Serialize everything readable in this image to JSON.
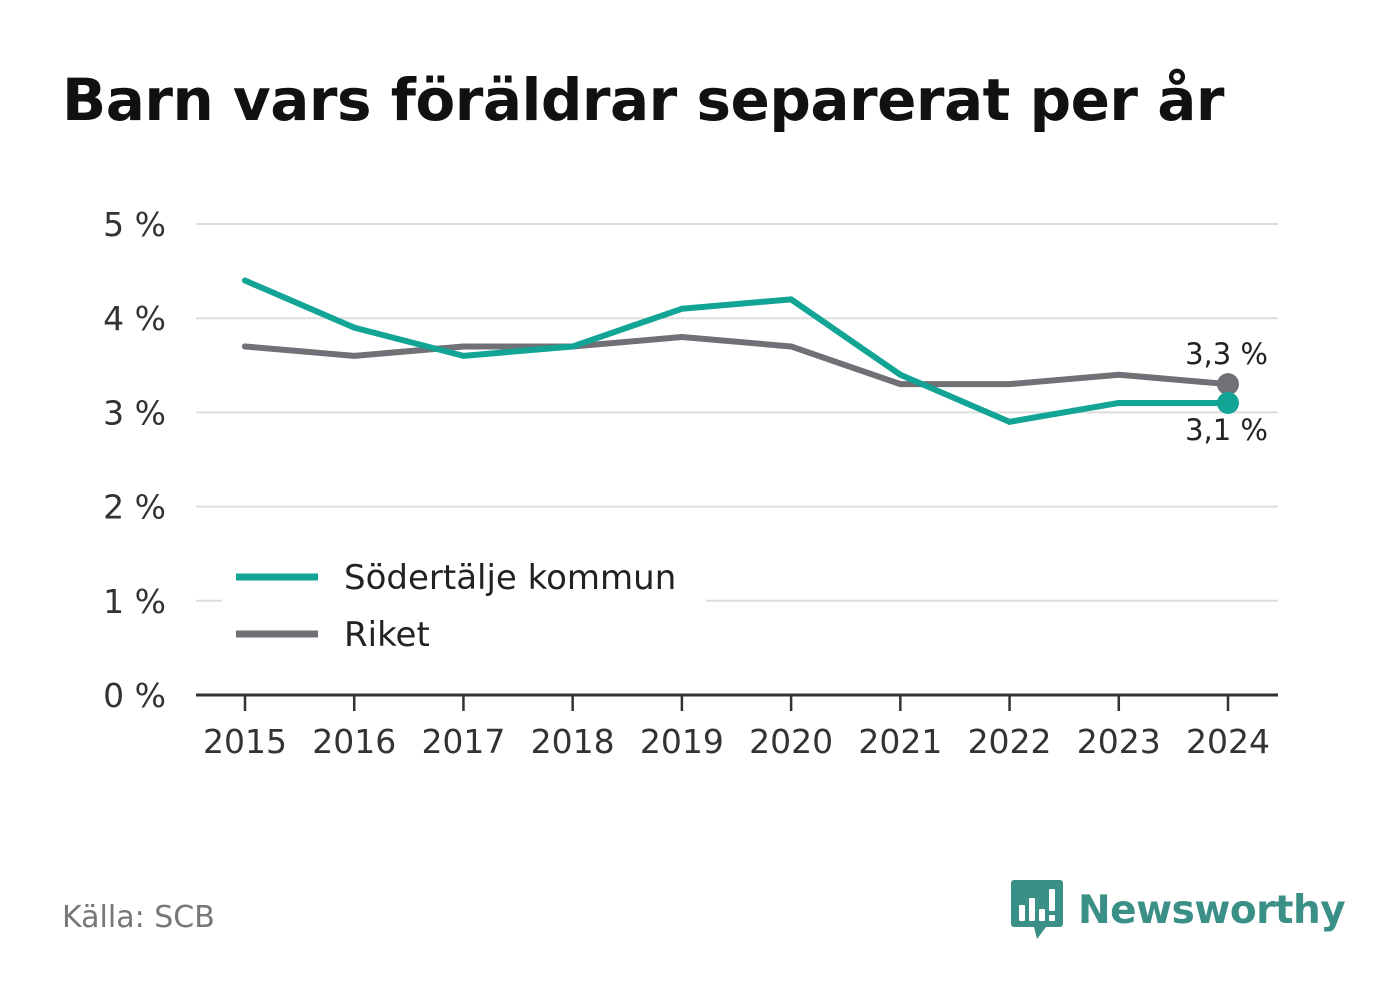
{
  "title": "Barn vars föräldrar separerat per år",
  "source": "Källa: SCB",
  "brand": {
    "name": "Newsworthy",
    "icon": "newsworthy-chart-logo-icon",
    "color": "#3a8f86"
  },
  "chart_data": {
    "type": "line",
    "x": [
      "2015",
      "2016",
      "2017",
      "2018",
      "2019",
      "2020",
      "2021",
      "2022",
      "2023",
      "2024"
    ],
    "series": [
      {
        "name": "Södertälje kommun",
        "color": "#12a596",
        "values": [
          4.4,
          3.9,
          3.6,
          3.7,
          4.1,
          4.2,
          3.4,
          2.9,
          3.1,
          3.1
        ],
        "end_label": "3,1 %"
      },
      {
        "name": "Riket",
        "color": "#717076",
        "values": [
          3.7,
          3.6,
          3.7,
          3.7,
          3.8,
          3.7,
          3.3,
          3.3,
          3.4,
          3.3
        ],
        "end_label": "3,3 %"
      }
    ],
    "y_ticks": [
      0,
      1,
      2,
      3,
      4,
      5
    ],
    "y_tick_labels": [
      "0 %",
      "1 %",
      "2 %",
      "3 %",
      "4 %",
      "5 %"
    ],
    "ylim": [
      0,
      5
    ],
    "grid": true,
    "legend_position": "bottom-left",
    "xlabel": "",
    "ylabel": ""
  }
}
